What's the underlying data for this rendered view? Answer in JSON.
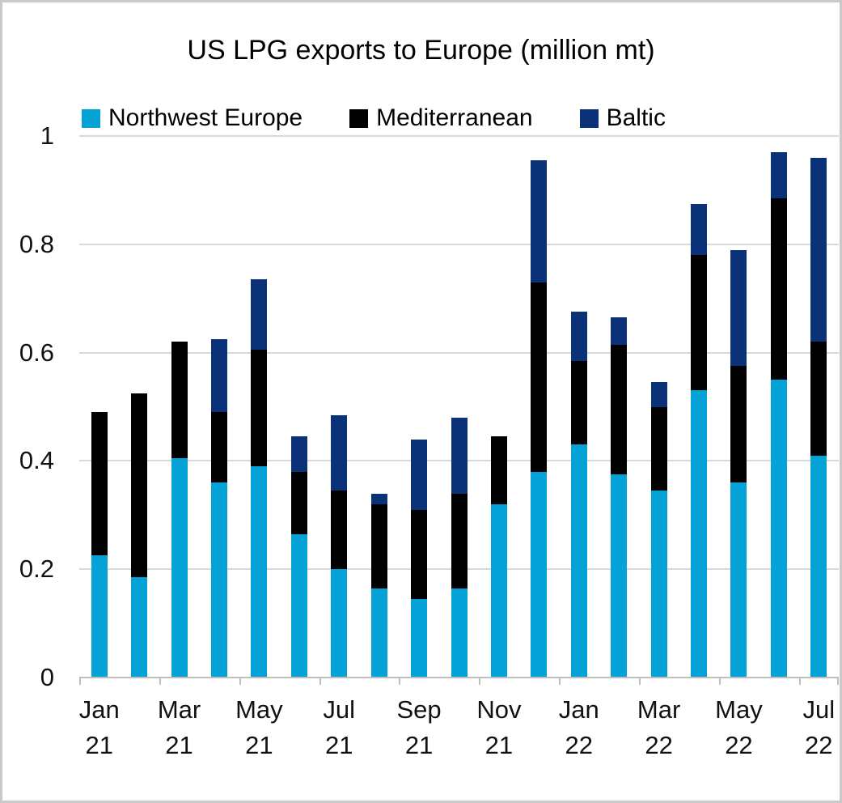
{
  "title": "US LPG exports to Europe (million mt)",
  "chart_data": {
    "type": "bar",
    "stacked": true,
    "title": "US LPG exports to Europe (million mt)",
    "xlabel": "",
    "ylabel": "",
    "ylim": [
      0,
      1
    ],
    "yticks": [
      0,
      0.2,
      0.4,
      0.6,
      0.8,
      1
    ],
    "ytick_labels": [
      "0",
      "0.2",
      "0.4",
      "0.6",
      "0.8",
      "1"
    ],
    "grid": true,
    "legend_position": "top",
    "x_label_interval": 2,
    "categories": [
      "Jan 21",
      "Feb 21",
      "Mar 21",
      "Apr 21",
      "May 21",
      "Jun 21",
      "Jul 21",
      "Aug 21",
      "Sep 21",
      "Oct 21",
      "Nov 21",
      "Dec 21",
      "Jan 22",
      "Feb 22",
      "Mar 22",
      "Apr 22",
      "May 22",
      "Jun 22",
      "Jul 22"
    ],
    "visible_x_labels": [
      "Jan 21",
      "Mar 21",
      "May 21",
      "Jul 21",
      "Sep 21",
      "Nov 21",
      "Jan 22",
      "Mar 22",
      "May 22",
      "Jul 22"
    ],
    "series": [
      {
        "name": "Northwest Europe",
        "color": "#05a2d8",
        "values": [
          0.225,
          0.185,
          0.405,
          0.36,
          0.39,
          0.265,
          0.2,
          0.165,
          0.145,
          0.165,
          0.32,
          0.38,
          0.43,
          0.375,
          0.345,
          0.53,
          0.36,
          0.55,
          0.41
        ]
      },
      {
        "name": "Mediterranean",
        "color": "#000000",
        "values": [
          0.265,
          0.34,
          0.215,
          0.13,
          0.215,
          0.115,
          0.145,
          0.155,
          0.165,
          0.175,
          0.125,
          0.35,
          0.155,
          0.24,
          0.155,
          0.25,
          0.215,
          0.335,
          0.21
        ]
      },
      {
        "name": "Baltic",
        "color": "#0b3179",
        "values": [
          0.0,
          0.0,
          0.0,
          0.135,
          0.13,
          0.065,
          0.14,
          0.02,
          0.13,
          0.14,
          0.0,
          0.225,
          0.09,
          0.05,
          0.045,
          0.095,
          0.215,
          0.085,
          0.34
        ]
      }
    ],
    "colors": {
      "gridline": "#d9d9d9",
      "axis": "#bfbfbf",
      "text": "#111111"
    }
  }
}
